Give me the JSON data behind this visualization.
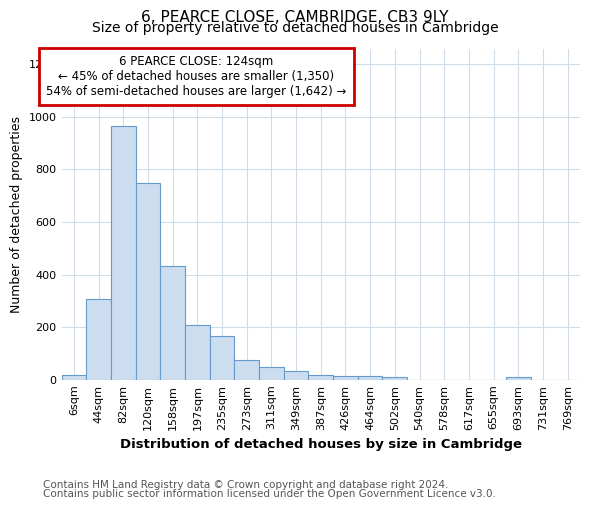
{
  "title": "6, PEARCE CLOSE, CAMBRIDGE, CB3 9LY",
  "subtitle": "Size of property relative to detached houses in Cambridge",
  "xlabel": "Distribution of detached houses by size in Cambridge",
  "ylabel": "Number of detached properties",
  "categories": [
    "6sqm",
    "44sqm",
    "82sqm",
    "120sqm",
    "158sqm",
    "197sqm",
    "235sqm",
    "273sqm",
    "311sqm",
    "349sqm",
    "387sqm",
    "426sqm",
    "464sqm",
    "502sqm",
    "540sqm",
    "578sqm",
    "617sqm",
    "655sqm",
    "693sqm",
    "731sqm",
    "769sqm"
  ],
  "values": [
    20,
    308,
    965,
    748,
    432,
    210,
    165,
    75,
    48,
    35,
    20,
    15,
    14,
    12,
    0,
    0,
    0,
    0,
    10,
    0,
    0
  ],
  "bar_color": "#ccddf0",
  "bar_edge_color": "#6699cc",
  "annotation_box_text": "6 PEARCE CLOSE: 124sqm\n← 45% of detached houses are smaller (1,350)\n54% of semi-detached houses are larger (1,642) →",
  "annotation_box_color": "#ffffff",
  "annotation_box_edge_color": "#cc0000",
  "ylim": [
    0,
    1260
  ],
  "yticks": [
    0,
    200,
    400,
    600,
    800,
    1000,
    1200
  ],
  "footer_line1": "Contains HM Land Registry data © Crown copyright and database right 2024.",
  "footer_line2": "Contains public sector information licensed under the Open Government Licence v3.0.",
  "background_color": "#ffffff",
  "plot_background_color": "#ffffff",
  "title_fontsize": 11,
  "subtitle_fontsize": 10,
  "xlabel_fontsize": 9.5,
  "ylabel_fontsize": 9,
  "tick_fontsize": 8,
  "footer_fontsize": 7.5,
  "annot_fontsize": 8.5
}
